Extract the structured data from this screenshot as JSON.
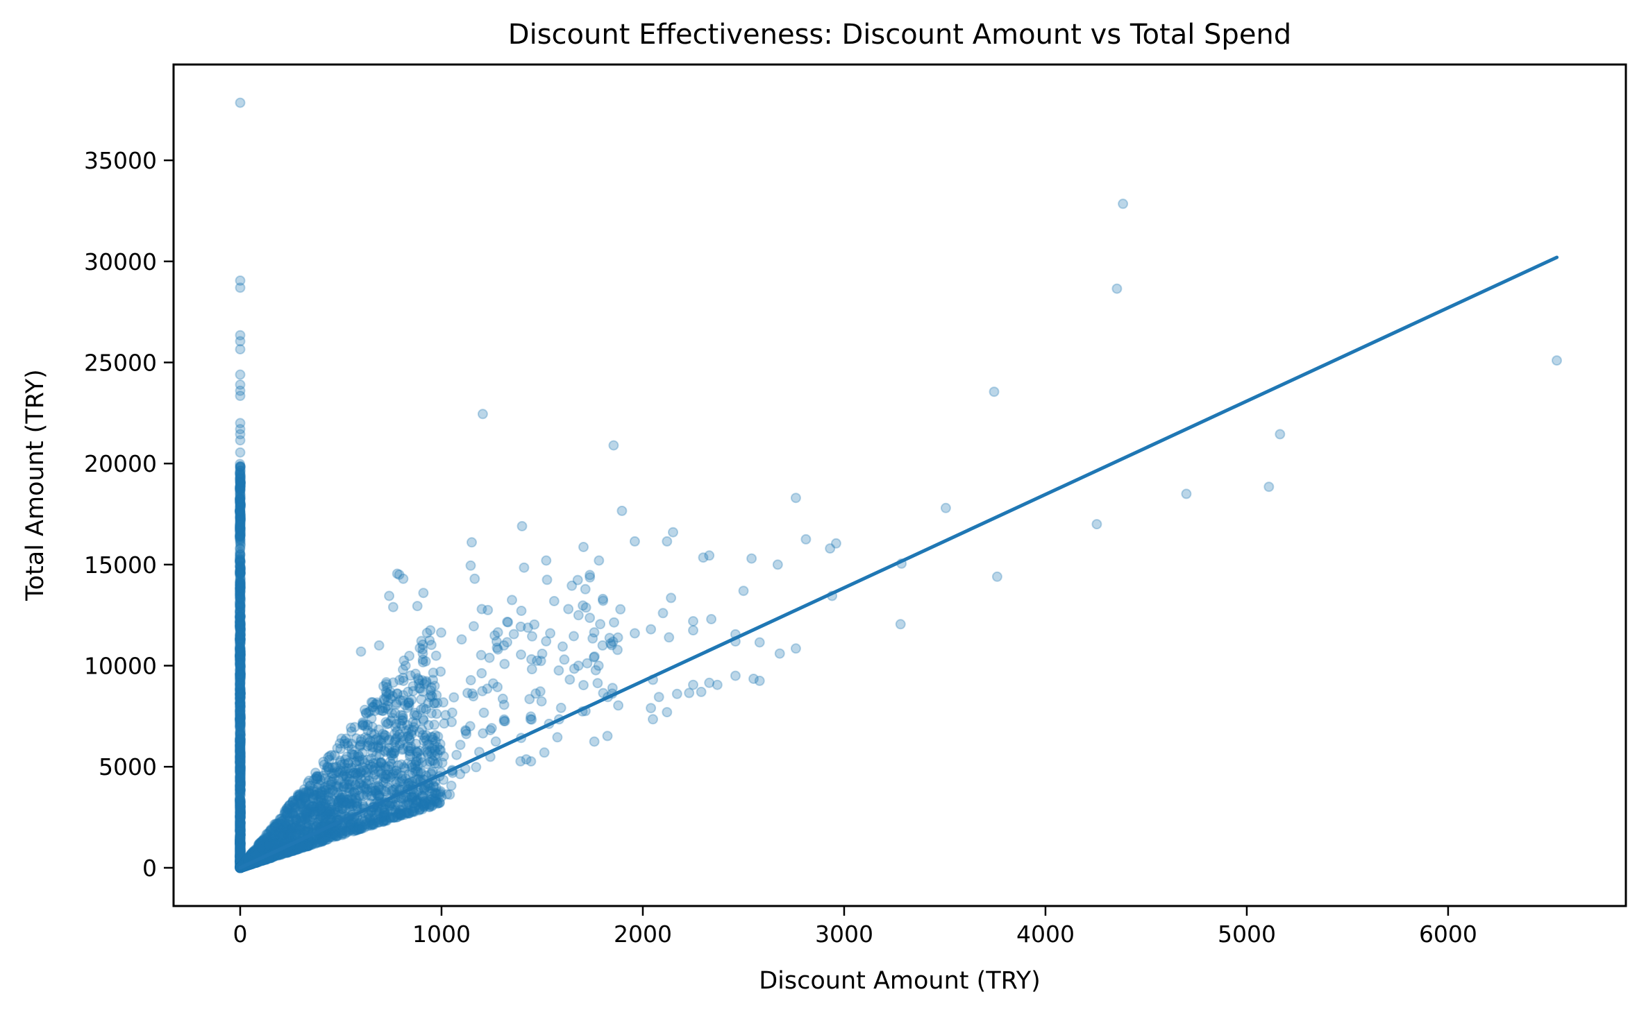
{
  "chart_data": {
    "type": "scatter",
    "title": "Discount Effectiveness: Discount Amount vs Total Spend",
    "xlabel": "Discount Amount (TRY)",
    "ylabel": "Total Amount (TRY)",
    "xlim": [
      -331,
      6883
    ],
    "ylim": [
      -1890,
      39740
    ],
    "xticks": [
      0,
      1000,
      2000,
      3000,
      4000,
      5000,
      6000
    ],
    "yticks": [
      0,
      5000,
      10000,
      15000,
      20000,
      25000,
      30000,
      35000
    ],
    "grid": false,
    "legend": null,
    "colors": {
      "points": "#1f77b4",
      "line": "#1f77b4"
    },
    "point_alpha": 0.3,
    "series": [
      {
        "name": "orders",
        "kind": "scatter",
        "description": "Dense cluster at discount=0 spanning 0-20000 TRY plus a wedge of points where total ≈ 3-13× discount for discounts 0-1000; sparse outliers listed below",
        "zero_discount_column": {
          "x": 0,
          "y_min": 0,
          "y_max": 37850,
          "dense_until": 20000
        },
        "outliers": [
          [
            0,
            37850
          ],
          [
            0,
            29050
          ],
          [
            0,
            28700
          ],
          [
            0,
            26350
          ],
          [
            0,
            26050
          ],
          [
            0,
            25650
          ],
          [
            0,
            24400
          ],
          [
            0,
            23900
          ],
          [
            0,
            23600
          ],
          [
            0,
            23350
          ],
          [
            0,
            22000
          ],
          [
            0,
            21700
          ],
          [
            0,
            21450
          ],
          [
            0,
            21150
          ],
          [
            0,
            20550
          ],
          [
            1205,
            22450
          ],
          [
            1855,
            20900
          ],
          [
            3745,
            23550
          ],
          [
            4385,
            32850
          ],
          [
            4355,
            28650
          ],
          [
            6540,
            25100
          ],
          [
            5165,
            21450
          ],
          [
            5110,
            18850
          ],
          [
            4700,
            18500
          ],
          [
            4255,
            17000
          ],
          [
            3505,
            17800
          ],
          [
            3760,
            14400
          ],
          [
            3285,
            15050
          ],
          [
            3280,
            12050
          ],
          [
            2760,
            18300
          ],
          [
            2810,
            16250
          ],
          [
            2960,
            16050
          ],
          [
            2930,
            15800
          ],
          [
            2940,
            13450
          ],
          [
            2670,
            15000
          ],
          [
            2540,
            15300
          ],
          [
            2500,
            13700
          ],
          [
            2330,
            15450
          ],
          [
            2300,
            15350
          ],
          [
            2150,
            16600
          ],
          [
            2120,
            16150
          ],
          [
            1960,
            16150
          ],
          [
            1400,
            16900
          ],
          [
            1150,
            16100
          ],
          [
            1145,
            14950
          ],
          [
            1165,
            14300
          ],
          [
            1410,
            14850
          ],
          [
            1520,
            15200
          ],
          [
            1200,
            12800
          ],
          [
            1230,
            12750
          ],
          [
            1330,
            12150
          ],
          [
            1350,
            13250
          ],
          [
            1630,
            12800
          ],
          [
            1800,
            11000
          ],
          [
            780,
            14550
          ],
          [
            790,
            14500
          ],
          [
            810,
            14300
          ],
          [
            740,
            13450
          ],
          [
            910,
            13600
          ],
          [
            760,
            12900
          ],
          [
            880,
            12950
          ],
          [
            600,
            10700
          ],
          [
            690,
            11000
          ],
          [
            2140,
            13350
          ],
          [
            2100,
            12600
          ],
          [
            2130,
            11400
          ],
          [
            2040,
            11800
          ],
          [
            1960,
            11600
          ],
          [
            2250,
            12200
          ],
          [
            2340,
            12300
          ],
          [
            2250,
            11750
          ],
          [
            2460,
            11550
          ],
          [
            2460,
            11200
          ],
          [
            2580,
            11150
          ],
          [
            2760,
            10850
          ],
          [
            2680,
            10600
          ],
          [
            2050,
            9300
          ],
          [
            2250,
            9050
          ],
          [
            2330,
            9150
          ],
          [
            2370,
            9050
          ],
          [
            2550,
            9350
          ],
          [
            2580,
            9250
          ],
          [
            2460,
            9500
          ],
          [
            2080,
            8450
          ],
          [
            2170,
            8600
          ],
          [
            2230,
            8650
          ],
          [
            2290,
            8700
          ],
          [
            2040,
            7900
          ],
          [
            2120,
            7700
          ],
          [
            2050,
            7350
          ],
          [
            1840,
            11100
          ],
          [
            1760,
            10450
          ],
          [
            1610,
            10300
          ],
          [
            1680,
            10000
          ],
          [
            1780,
            10000
          ],
          [
            1540,
            11600
          ],
          [
            1450,
            11450
          ],
          [
            1310,
            11000
          ],
          [
            1280,
            11650
          ],
          [
            1160,
            11950
          ],
          [
            1100,
            11300
          ],
          [
            1280,
            10800
          ]
        ]
      },
      {
        "name": "regression line",
        "kind": "line",
        "points": [
          [
            0,
            0
          ],
          [
            6540,
            30200
          ]
        ]
      }
    ]
  }
}
